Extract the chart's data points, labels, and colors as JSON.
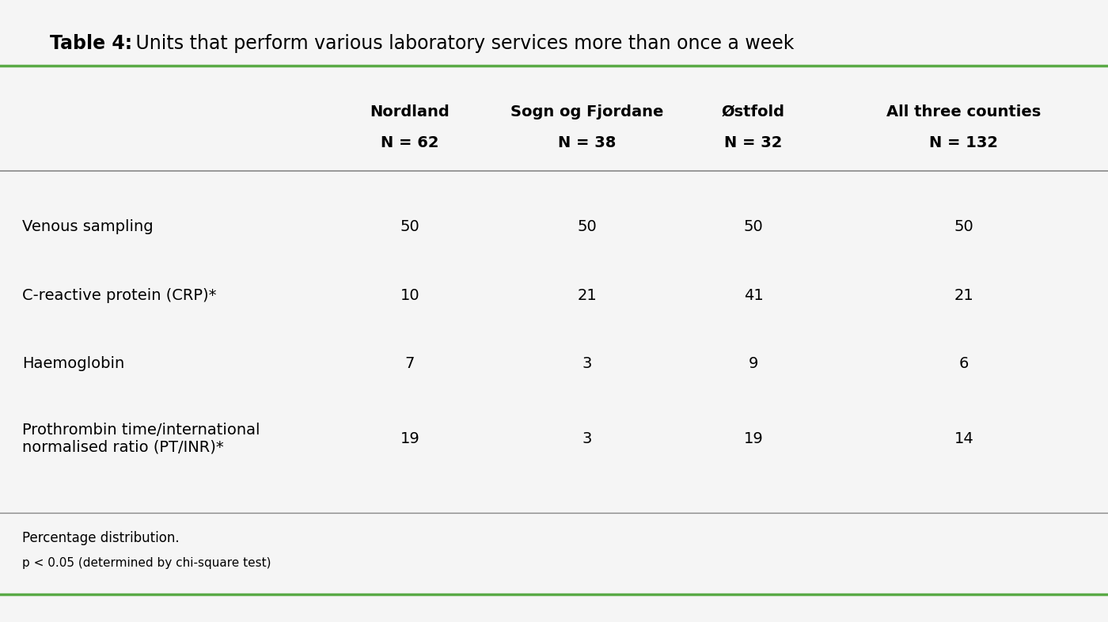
{
  "title_bold": "Table 4:",
  "title_regular": " Units that perform various laboratory services more than once a week",
  "col_headers": [
    [
      "Nordland",
      "N = 62"
    ],
    [
      "Sogn og Fjordane",
      "N = 38"
    ],
    [
      "Østfold",
      "N = 32"
    ],
    [
      "All three counties",
      "N = 132"
    ]
  ],
  "row_labels": [
    "Venous sampling",
    "C-reactive protein (CRP)*",
    "Haemoglobin",
    "Prothrombin time/international\nnormalised ratio (PT/INR)*"
  ],
  "data": [
    [
      50,
      50,
      50,
      50
    ],
    [
      10,
      21,
      41,
      21
    ],
    [
      7,
      3,
      9,
      6
    ],
    [
      19,
      3,
      19,
      14
    ]
  ],
  "footnotes": [
    "Percentage distribution.",
    "p < 0.05 (determined by chi-square test)"
  ],
  "bg_color": "#f5f5f5",
  "line_color_green": "#5aaa46",
  "line_color_gray": "#cccccc",
  "header_line_color": "#888888",
  "title_fontsize": 17,
  "header_fontsize": 14,
  "data_fontsize": 14,
  "row_label_fontsize": 14,
  "footnote_fontsize": 11
}
